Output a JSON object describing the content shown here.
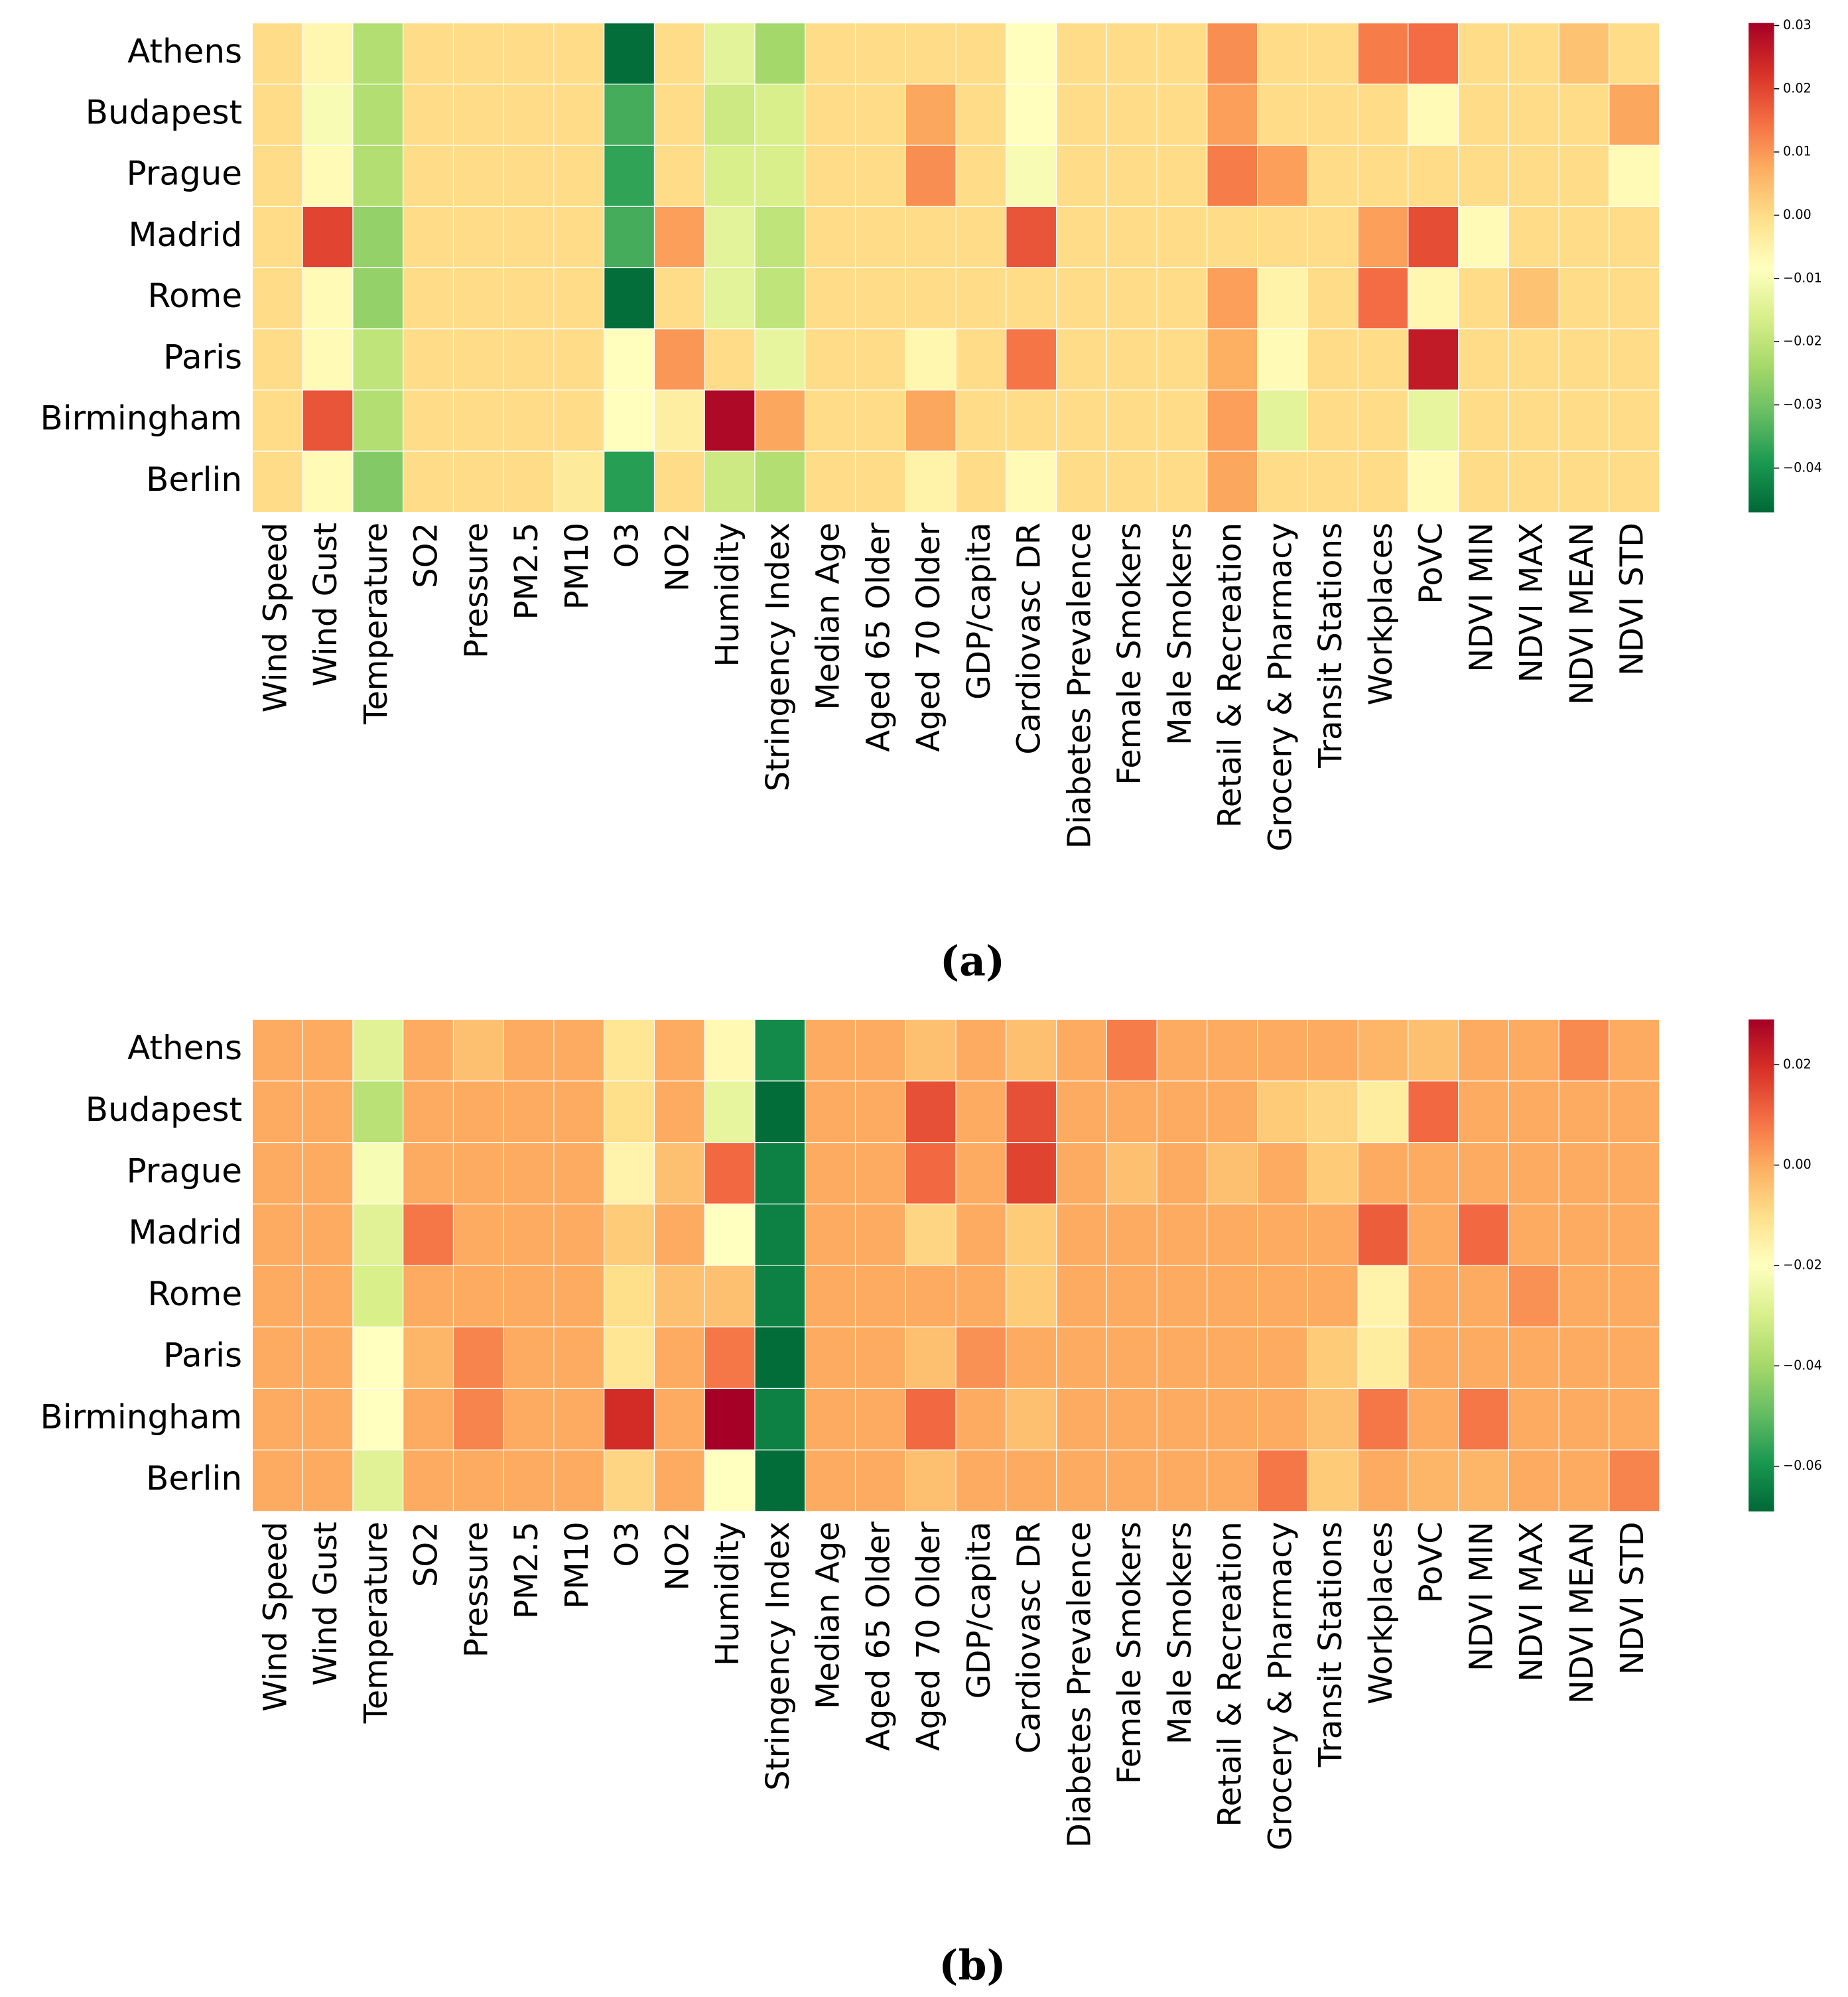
{
  "chart_data": [
    {
      "type": "heatmap",
      "title": "(a)",
      "x": [
        "Wind Speed",
        "Wind Gust",
        "Temperature",
        "SO2",
        "Pressure",
        "PM2.5",
        "PM10",
        "O3",
        "NO2",
        "Humidity",
        "Stringency Index",
        "Median Age",
        "Aged 65 Older",
        "Aged 70 Older",
        "GDP/capita",
        "Cardiovasc DR",
        "Diabetes Prevalence",
        "Female Smokers",
        "Male Smokers",
        "Retail & Recreation",
        "Grocery & Pharmacy",
        "Transit Stations",
        "Workplaces",
        "PoVC",
        "NDVI MIN",
        "NDVI MAX",
        "NDVI MEAN",
        "NDVI STD"
      ],
      "y": [
        "Athens",
        "Budapest",
        "Prague",
        "Madrid",
        "Rome",
        "Paris",
        "Birmingham",
        "Berlin"
      ],
      "values": [
        [
          0,
          -0.006,
          -0.022,
          0,
          0,
          0,
          0,
          -0.046,
          0,
          -0.014,
          -0.024,
          0,
          0,
          0,
          0,
          -0.008,
          0,
          0,
          0,
          0.011,
          0,
          0,
          0.013,
          0.015,
          0,
          0,
          0.004,
          0
        ],
        [
          0,
          -0.01,
          -0.022,
          0,
          0,
          0,
          0,
          -0.035,
          0,
          -0.018,
          -0.016,
          0,
          0,
          0.008,
          0,
          -0.008,
          0,
          0,
          0,
          0.009,
          0,
          0,
          0,
          -0.007,
          0,
          0,
          0,
          0.008
        ],
        [
          0,
          -0.007,
          -0.022,
          0,
          0,
          0,
          0,
          -0.037,
          0,
          -0.016,
          -0.016,
          0,
          0,
          0.011,
          0,
          -0.01,
          0,
          0,
          0,
          0.013,
          0.009,
          0,
          0,
          0,
          0,
          0,
          0,
          -0.007
        ],
        [
          0,
          0.02,
          -0.026,
          0,
          0,
          0,
          0,
          -0.035,
          0.009,
          -0.014,
          -0.02,
          0,
          0,
          0,
          0,
          0.018,
          0,
          0,
          0,
          0,
          0,
          0,
          0.009,
          0.019,
          -0.007,
          0,
          0,
          0
        ],
        [
          0,
          -0.007,
          -0.026,
          0,
          0,
          0,
          0,
          -0.046,
          0,
          -0.014,
          -0.02,
          0,
          0,
          0,
          0,
          0,
          0,
          0,
          0,
          0.009,
          -0.005,
          0,
          0.015,
          -0.006,
          0,
          0.004,
          0,
          0
        ],
        [
          0,
          -0.007,
          -0.02,
          0,
          0,
          0,
          0,
          -0.008,
          0.01,
          0,
          -0.013,
          0,
          0,
          -0.006,
          0,
          0.014,
          0,
          0,
          0,
          0.007,
          -0.007,
          0,
          0,
          0.026,
          0,
          0,
          0,
          0
        ],
        [
          0,
          0.018,
          -0.022,
          0,
          0,
          0,
          0,
          -0.008,
          -0.004,
          0.029,
          0.008,
          0,
          0,
          0.008,
          0,
          0,
          0,
          0,
          0,
          0.009,
          -0.014,
          0,
          0,
          -0.013,
          0,
          0,
          0,
          0
        ],
        [
          0,
          -0.007,
          -0.028,
          0,
          0,
          0,
          -0.003,
          -0.038,
          0,
          -0.018,
          -0.022,
          0,
          0,
          -0.005,
          0,
          -0.007,
          0,
          0,
          0,
          0.008,
          0,
          0,
          0,
          -0.007,
          0,
          0,
          0,
          0
        ]
      ],
      "clim": [
        -0.047,
        0.0304
      ],
      "cticks": [
        0.03,
        0.02,
        0.01,
        {
          "value": 0,
          "label": "0.00"
        },
        {
          "value": -0.01,
          "label": "−0.01"
        },
        {
          "value": -0.02,
          "label": "−0.02"
        },
        {
          "value": -0.03,
          "label": "−0.03"
        },
        {
          "value": -0.04,
          "label": "−0.04"
        }
      ],
      "colormap": [
        "#006837",
        "#1a9850",
        "#66bd63",
        "#a6d96a",
        "#d9ef8b",
        "#ffffbf",
        "#fee08b",
        "#fdae61",
        "#f46d43",
        "#d73027",
        "#a50026"
      ]
    },
    {
      "type": "heatmap",
      "title": "(b)",
      "x": [
        "Wind Speed",
        "Wind Gust",
        "Temperature",
        "SO2",
        "Pressure",
        "PM2.5",
        "PM10",
        "O3",
        "NO2",
        "Humidity",
        "Stringency Index",
        "Median Age",
        "Aged 65 Older",
        "Aged 70 Older",
        "GDP/capita",
        "Cardiovasc DR",
        "Diabetes Prevalence",
        "Female Smokers",
        "Male Smokers",
        "Retail & Recreation",
        "Grocery & Pharmacy",
        "Transit Stations",
        "Workplaces",
        "PoVC",
        "NDVI MIN",
        "NDVI MAX",
        "NDVI MEAN",
        "NDVI STD"
      ],
      "y": [
        "Athens",
        "Budapest",
        "Prague",
        "Madrid",
        "Rome",
        "Paris",
        "Birmingham",
        "Berlin"
      ],
      "values": [
        [
          0,
          0,
          -0.028,
          0,
          -0.004,
          0,
          0,
          -0.012,
          0,
          -0.018,
          -0.062,
          0,
          0,
          -0.004,
          0,
          -0.004,
          0,
          0.007,
          0,
          0,
          0,
          0,
          -0.002,
          -0.004,
          0,
          0,
          0.005,
          0
        ],
        [
          0,
          0,
          -0.036,
          0,
          0,
          0,
          0,
          -0.01,
          0,
          -0.026,
          -0.068,
          0,
          0,
          0.014,
          0,
          0.014,
          0,
          0,
          0,
          0,
          -0.006,
          -0.008,
          -0.014,
          0.01,
          0,
          0,
          0,
          0
        ],
        [
          0,
          0,
          -0.022,
          0,
          0,
          0,
          0,
          -0.016,
          -0.004,
          0.01,
          -0.064,
          0,
          0,
          0.01,
          0,
          0.016,
          0,
          -0.004,
          0,
          -0.004,
          0,
          -0.006,
          0,
          0,
          0,
          0,
          0,
          0
        ],
        [
          0,
          0,
          -0.028,
          0.008,
          0,
          0,
          0,
          -0.006,
          0,
          -0.02,
          -0.064,
          0,
          0,
          -0.008,
          0,
          -0.006,
          0,
          0,
          0,
          0,
          0,
          0,
          0.012,
          0,
          0.01,
          0,
          0,
          0
        ],
        [
          0,
          0,
          -0.03,
          0,
          0,
          0,
          0,
          -0.01,
          -0.004,
          -0.004,
          -0.064,
          0,
          0,
          0,
          0,
          -0.006,
          0,
          0,
          0,
          0,
          0,
          0,
          -0.016,
          0,
          0,
          0.004,
          0,
          0
        ],
        [
          0,
          0,
          -0.02,
          -0.002,
          0.006,
          0,
          0,
          -0.012,
          0,
          0.008,
          -0.068,
          0,
          0,
          -0.004,
          0.004,
          0,
          0,
          0,
          0,
          0,
          0,
          -0.006,
          -0.014,
          0,
          0,
          0,
          0,
          0
        ],
        [
          0,
          0,
          -0.02,
          0,
          0.006,
          0,
          0,
          0.02,
          0,
          0.029,
          -0.064,
          0,
          0,
          0.01,
          0,
          -0.004,
          0,
          0,
          0,
          0,
          0,
          -0.004,
          0.008,
          0,
          0.008,
          0,
          0,
          0
        ],
        [
          0,
          0,
          -0.028,
          0,
          0,
          0,
          0,
          -0.008,
          0,
          -0.02,
          -0.068,
          0,
          0,
          -0.004,
          0,
          0,
          0,
          0,
          0,
          0,
          0.008,
          -0.006,
          0,
          -0.002,
          -0.002,
          0,
          0,
          0.006
        ]
      ],
      "clim": [
        -0.069,
        0.029
      ],
      "cticks": [
        0.02,
        {
          "value": 0,
          "label": "0.00"
        },
        {
          "value": -0.02,
          "label": "−0.02"
        },
        {
          "value": -0.04,
          "label": "−0.04"
        },
        {
          "value": -0.06,
          "label": "−0.06"
        }
      ],
      "colormap": [
        "#006837",
        "#1a9850",
        "#66bd63",
        "#a6d96a",
        "#d9ef8b",
        "#ffffbf",
        "#fee08b",
        "#fdae61",
        "#f46d43",
        "#d73027",
        "#a50026"
      ]
    }
  ]
}
